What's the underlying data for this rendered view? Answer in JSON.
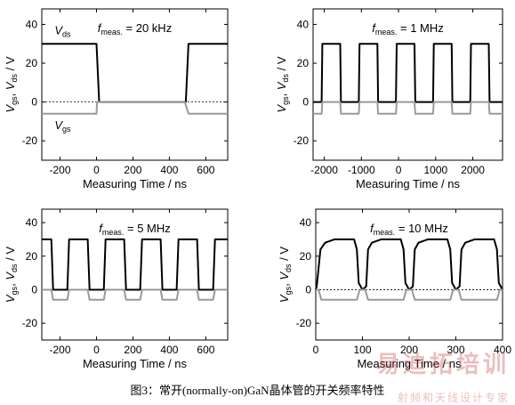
{
  "caption": "图3：常开(normally-on)GaN晶体管的开关频率特性",
  "watermark": {
    "main": "易迪拓培训",
    "sub": "射频和天线设计专家"
  },
  "colors": {
    "vds": "#000000",
    "vgs": "#999999",
    "zero_line": "#000000"
  },
  "chart_data": [
    {
      "type": "line",
      "title_italic": "f",
      "title_sub": "meas.",
      "title_rest": " = 20 kHz",
      "xlabel": "Measuring Time / ns",
      "ylabel": [
        "V",
        "gs",
        ", ",
        "V",
        "ds",
        " / V"
      ],
      "xlim": [
        -300,
        720
      ],
      "ylim": [
        -30,
        48
      ],
      "xticks": [
        -200,
        0,
        200,
        400,
        600
      ],
      "yticks": [
        -20,
        0,
        20,
        40
      ],
      "annotations": [
        {
          "v": "V",
          "sub": "ds",
          "x": -230,
          "y": 35
        },
        {
          "v": "V",
          "sub": "gs",
          "x": -230,
          "y": -14
        }
      ],
      "series": [
        {
          "name": "Vds",
          "color": "#000000",
          "width": 2,
          "x": [
            -300,
            0,
            15,
            490,
            505,
            720
          ],
          "y": [
            30,
            30,
            0,
            0,
            30,
            30
          ]
        },
        {
          "name": "Vgs",
          "color": "#999999",
          "width": 2,
          "x": [
            -300,
            0,
            3,
            485,
            505,
            720
          ],
          "y": [
            -6,
            -6,
            0,
            0,
            -6,
            -6
          ]
        }
      ]
    },
    {
      "type": "line",
      "title_italic": "f",
      "title_sub": "meas.",
      "title_rest": " = 1 MHz",
      "xlabel": "Measuring Time / ns",
      "ylabel": [
        "V",
        "gs",
        ", ",
        "V",
        "ds",
        " / V"
      ],
      "xlim": [
        -2300,
        2800
      ],
      "ylim": [
        -30,
        48
      ],
      "xticks": [
        -2000,
        -1000,
        0,
        1000,
        2000
      ],
      "yticks": [
        -20,
        0,
        20,
        40
      ],
      "annotations": [],
      "series": [
        {
          "name": "Vds",
          "color": "#000000",
          "width": 2,
          "x": [
            -2300,
            -2070,
            -2050,
            -1570,
            -1550,
            -1070,
            -1050,
            -570,
            -550,
            -70,
            -50,
            430,
            450,
            930,
            950,
            1430,
            1450,
            1930,
            1950,
            2430,
            2450,
            2800
          ],
          "y": [
            0,
            0,
            30,
            30,
            0,
            0,
            30,
            30,
            0,
            0,
            30,
            30,
            0,
            0,
            30,
            30,
            0,
            0,
            30,
            30,
            0,
            0
          ]
        },
        {
          "name": "Vgs",
          "color": "#999999",
          "width": 2,
          "x": [
            -2300,
            -2070,
            -2050,
            -1570,
            -1550,
            -1070,
            -1050,
            -570,
            -550,
            -70,
            -50,
            430,
            450,
            930,
            950,
            1430,
            1450,
            1930,
            1950,
            2430,
            2450,
            2800
          ],
          "y": [
            -6,
            -6,
            0,
            0,
            -6,
            -6,
            0,
            0,
            -6,
            -6,
            0,
            0,
            -6,
            -6,
            0,
            0,
            -6,
            -6,
            0,
            0,
            -6,
            -6
          ]
        }
      ]
    },
    {
      "type": "line",
      "title_italic": "f",
      "title_sub": "meas.",
      "title_rest": " = 5 MHz",
      "xlabel": "Measuring Time / ns",
      "ylabel": [
        "V",
        "gs",
        ", ",
        "V",
        "ds",
        " / V"
      ],
      "xlim": [
        -300,
        720
      ],
      "ylim": [
        -30,
        48
      ],
      "xticks": [
        -200,
        0,
        200,
        400,
        600
      ],
      "yticks": [
        -20,
        0,
        20,
        40
      ],
      "annotations": [],
      "series": [
        {
          "name": "Vds",
          "color": "#000000",
          "width": 2,
          "x": [
            -300,
            -248,
            -238,
            -160,
            -150,
            -48,
            -38,
            40,
            50,
            152,
            162,
            240,
            250,
            352,
            362,
            440,
            450,
            552,
            562,
            640,
            650,
            720
          ],
          "y": [
            30,
            30,
            0,
            0,
            30,
            30,
            0,
            0,
            30,
            30,
            0,
            0,
            30,
            30,
            0,
            0,
            30,
            30,
            0,
            0,
            30,
            30
          ]
        },
        {
          "name": "Vgs",
          "color": "#999999",
          "width": 2,
          "x": [
            -300,
            -248,
            -238,
            -160,
            -150,
            -48,
            -38,
            40,
            50,
            152,
            162,
            240,
            250,
            352,
            362,
            440,
            450,
            552,
            562,
            640,
            650,
            720
          ],
          "y": [
            0,
            0,
            -6,
            -6,
            0,
            0,
            -6,
            -6,
            0,
            0,
            -6,
            -6,
            0,
            0,
            -6,
            -6,
            0,
            0,
            -6,
            -6,
            0,
            0
          ]
        }
      ]
    },
    {
      "type": "line",
      "title_italic": "f",
      "title_sub": "meas.",
      "title_rest": " = 10 MHz",
      "xlabel": "Measuring Time / ns",
      "ylabel": [
        "V",
        "gs",
        ", ",
        "V",
        "ds",
        " / V"
      ],
      "xlim": [
        0,
        400
      ],
      "ylim": [
        -30,
        48
      ],
      "xticks": [
        0,
        100,
        200,
        300,
        400
      ],
      "yticks": [
        -20,
        0,
        20,
        40
      ],
      "annotations": [],
      "series": [
        {
          "name": "Vds",
          "color": "#000000",
          "width": 2,
          "x": [
            0,
            2,
            10,
            20,
            40,
            82,
            88,
            92,
            100,
            108,
            112,
            120,
            140,
            182,
            188,
            192,
            200,
            208,
            212,
            220,
            240,
            282,
            288,
            292,
            300,
            308,
            312,
            320,
            340,
            382,
            388,
            392,
            400
          ],
          "y": [
            0,
            2,
            24,
            28,
            30,
            30,
            24,
            4,
            0,
            2,
            24,
            28,
            30,
            30,
            24,
            4,
            0,
            2,
            24,
            28,
            30,
            30,
            24,
            4,
            0,
            2,
            24,
            28,
            30,
            30,
            24,
            4,
            0
          ]
        },
        {
          "name": "Vgs",
          "color": "#999999",
          "width": 2,
          "x": [
            0,
            6,
            12,
            88,
            94,
            106,
            112,
            188,
            194,
            206,
            212,
            288,
            294,
            306,
            312,
            388,
            394,
            400
          ],
          "y": [
            0,
            0,
            -6,
            -6,
            0,
            0,
            -6,
            -6,
            0,
            0,
            -6,
            -6,
            0,
            0,
            -6,
            -6,
            0,
            0
          ]
        }
      ]
    }
  ]
}
